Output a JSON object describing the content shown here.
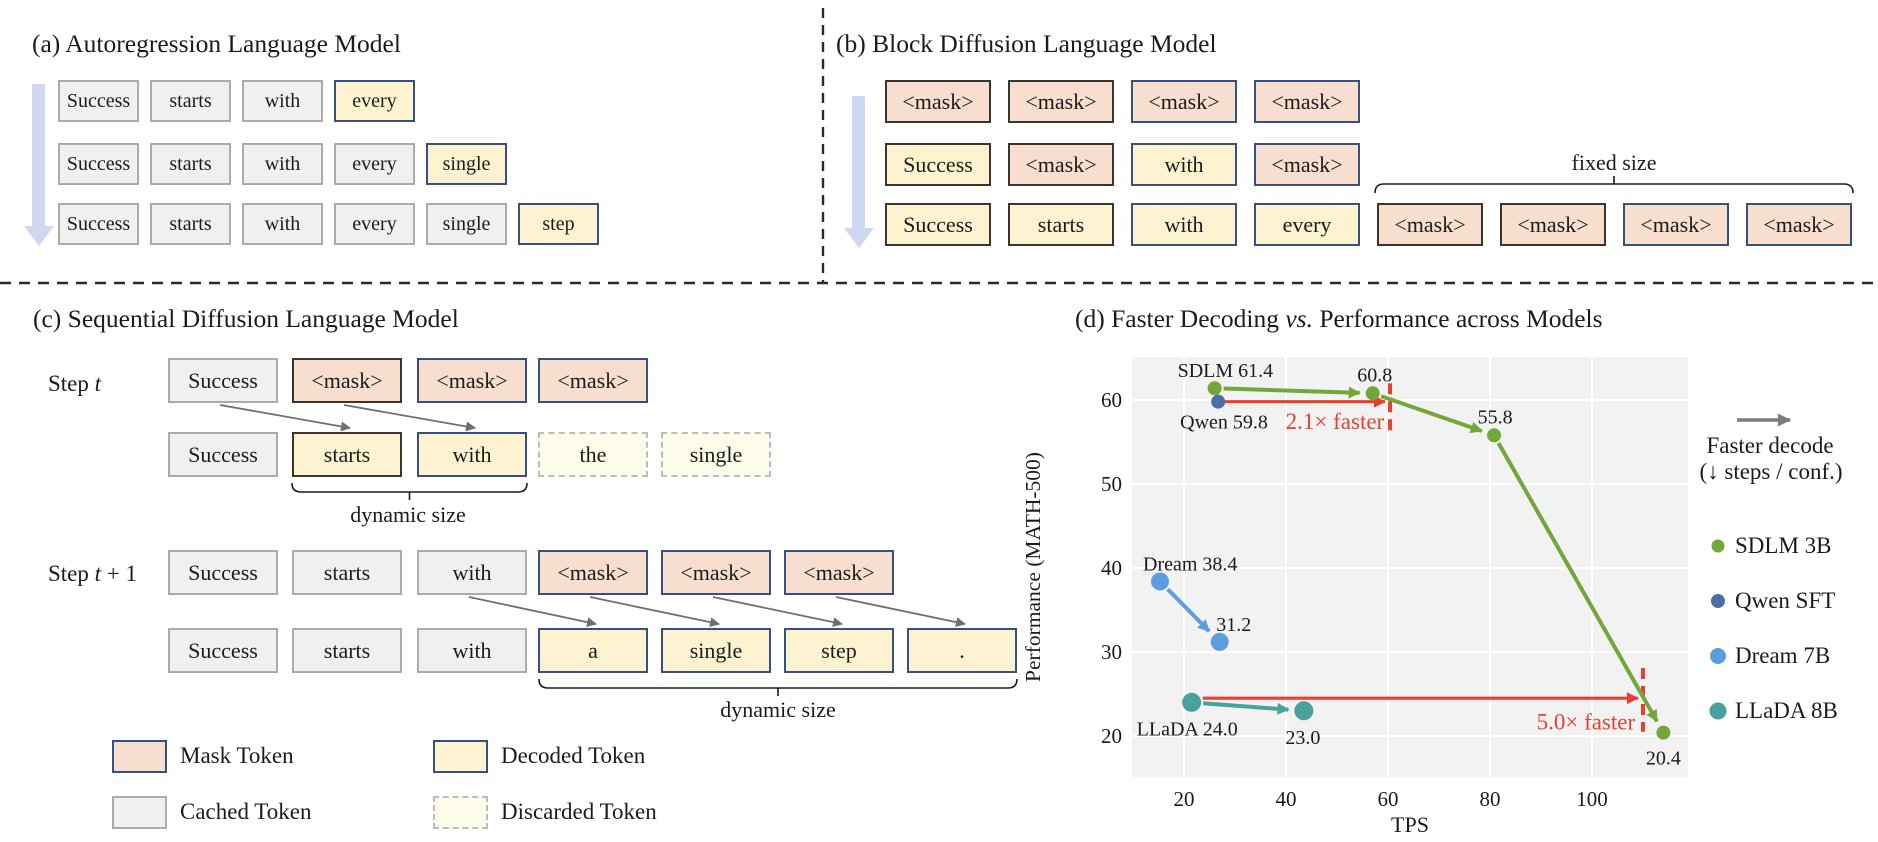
{
  "panel_a": {
    "title": "(a) Autoregression Language Model",
    "rows": [
      [
        {
          "t": "Success",
          "k": "cached"
        },
        {
          "t": "starts",
          "k": "cached"
        },
        {
          "t": "with",
          "k": "cached"
        },
        {
          "t": "every",
          "k": "dec"
        }
      ],
      [
        {
          "t": "Success",
          "k": "cached"
        },
        {
          "t": "starts",
          "k": "cached"
        },
        {
          "t": "with",
          "k": "cached"
        },
        {
          "t": "every",
          "k": "cached"
        },
        {
          "t": "single",
          "k": "dec"
        }
      ],
      [
        {
          "t": "Success",
          "k": "cached"
        },
        {
          "t": "starts",
          "k": "cached"
        },
        {
          "t": "with",
          "k": "cached"
        },
        {
          "t": "every",
          "k": "cached"
        },
        {
          "t": "single",
          "k": "cached"
        },
        {
          "t": "step",
          "k": "dec"
        }
      ]
    ]
  },
  "panel_b": {
    "title": "(b) Block Diffusion Language Model",
    "fixed_size_label": "fixed size",
    "rows": [
      [
        {
          "t": "<mask>",
          "k": "maskd"
        },
        {
          "t": "<mask>",
          "k": "maskd"
        },
        {
          "t": "<mask>",
          "k": "mask"
        },
        {
          "t": "<mask>",
          "k": "mask"
        }
      ],
      [
        {
          "t": "Success",
          "k": "decd"
        },
        {
          "t": "<mask>",
          "k": "maskd"
        },
        {
          "t": "with",
          "k": "dec"
        },
        {
          "t": "<mask>",
          "k": "mask"
        }
      ],
      [
        {
          "t": "Success",
          "k": "decd"
        },
        {
          "t": "starts",
          "k": "decd"
        },
        {
          "t": "with",
          "k": "dec"
        },
        {
          "t": "every",
          "k": "dec"
        }
      ]
    ],
    "mask_row": [
      {
        "t": "<mask>",
        "k": "maskd"
      },
      {
        "t": "<mask>",
        "k": "maskd"
      },
      {
        "t": "<mask>",
        "k": "mask"
      },
      {
        "t": "<mask>",
        "k": "mask"
      }
    ]
  },
  "panel_c": {
    "title": "(c) Sequential Diffusion Language Model",
    "step_t": {
      "prefix": "Step ",
      "var": "t",
      "suffix": ""
    },
    "step_t1": {
      "prefix": "Step ",
      "var": "t",
      "suffix": " + 1"
    },
    "dynamic_size_label": "dynamic size",
    "step_t_rows": [
      [
        {
          "t": "Success",
          "k": "cached"
        },
        {
          "t": "<mask>",
          "k": "maskd"
        },
        {
          "t": "<mask>",
          "k": "mask"
        },
        {
          "t": "<mask>",
          "k": "mask"
        }
      ],
      [
        {
          "t": "Success",
          "k": "cached"
        },
        {
          "t": "starts",
          "k": "decd"
        },
        {
          "t": "with",
          "k": "dec"
        },
        {
          "t": "the",
          "k": "disc"
        },
        {
          "t": "single",
          "k": "disc"
        }
      ]
    ],
    "step_t1_rows": [
      [
        {
          "t": "Success",
          "k": "cached"
        },
        {
          "t": "starts",
          "k": "cached"
        },
        {
          "t": "with",
          "k": "cached"
        },
        {
          "t": "<mask>",
          "k": "mask"
        },
        {
          "t": "<mask>",
          "k": "mask"
        },
        {
          "t": "<mask>",
          "k": "mask"
        }
      ],
      [
        {
          "t": "Success",
          "k": "cached"
        },
        {
          "t": "starts",
          "k": "cached"
        },
        {
          "t": "with",
          "k": "cached"
        },
        {
          "t": "a",
          "k": "dec"
        },
        {
          "t": "single",
          "k": "dec"
        },
        {
          "t": "step",
          "k": "dec"
        },
        {
          "t": ".",
          "k": "dec"
        }
      ]
    ],
    "legend": [
      {
        "label": "Mask Token",
        "kind": "mask"
      },
      {
        "label": "Cached Token",
        "kind": "cached"
      },
      {
        "label": "Decoded Token",
        "kind": "dec"
      },
      {
        "label": "Discarded Token",
        "kind": "disc"
      }
    ]
  },
  "panel_d": {
    "title_prefix": "(d) Faster Decoding ",
    "title_vs": "vs.",
    "title_suffix": " Performance across Models"
  },
  "chart_data": {
    "type": "scatter",
    "xlabel": "TPS",
    "ylabel": "Performance (MATH-500)",
    "x_ticks": [
      20,
      40,
      60,
      80,
      100
    ],
    "y_ticks": [
      20,
      30,
      40,
      50,
      60
    ],
    "xlim": [
      9.8,
      118.8
    ],
    "ylim": [
      15.1,
      65.2
    ],
    "grid": true,
    "series": [
      {
        "name": "SDLM 3B",
        "color": "#74a73a",
        "r": 7,
        "arrows": true,
        "points": [
          {
            "x": 26,
            "y": 61.4,
            "label": "SDLM 61.4",
            "la": "start",
            "ldx": -37,
            "ldy": -11
          },
          {
            "x": 57,
            "y": 60.8,
            "label": "60.8",
            "la": "middle",
            "ldx": 2,
            "ldy": -12
          },
          {
            "x": 80.8,
            "y": 55.8,
            "label": "55.8",
            "la": "middle",
            "ldx": 1,
            "ldy": -12
          },
          {
            "x": 114,
            "y": 20.4,
            "label": "20.4",
            "la": "middle",
            "ldx": 0,
            "ldy": 32
          }
        ]
      },
      {
        "name": "Qwen SFT",
        "color": "#4a6fa8",
        "r": 7,
        "arrows": false,
        "points": [
          {
            "x": 26.7,
            "y": 59.8,
            "label": "Qwen 59.8",
            "la": "start",
            "ldx": -38,
            "ldy": 27
          }
        ]
      },
      {
        "name": "Dream 7B",
        "color": "#5a9ee0",
        "r": 9,
        "arrows": true,
        "points": [
          {
            "x": 15.3,
            "y": 38.4,
            "label": "Dream 38.4",
            "la": "start",
            "ldx": -17,
            "ldy": -11
          },
          {
            "x": 27,
            "y": 31.2,
            "label": "31.2",
            "la": "middle",
            "ldx": 14,
            "ldy": -11
          }
        ]
      },
      {
        "name": "LLaDA 8B",
        "color": "#47a29b",
        "r": 9.5,
        "arrows": true,
        "points": [
          {
            "x": 21.5,
            "y": 24.0,
            "label": "LLaDA 24.0",
            "la": "start",
            "ldx": -55,
            "ldy": 33
          },
          {
            "x": 43.5,
            "y": 23.0,
            "label": "23.0",
            "la": "middle",
            "ldx": -1,
            "ldy": 33
          }
        ]
      }
    ],
    "annotations": [
      {
        "type": "harrow",
        "x1": 28,
        "x2": 59.4,
        "y": 59.8
      },
      {
        "type": "vdash",
        "x": 60.4,
        "ytop": 62.0,
        "ybot": 56.2
      },
      {
        "type": "text",
        "x": 49.6,
        "y": 56.55,
        "text": "2.1× faster"
      },
      {
        "type": "harrow",
        "x1": 23.7,
        "x2": 109,
        "y": 24.5
      },
      {
        "type": "vdash",
        "x": 110,
        "ytop": 28.1,
        "ybot": 20.5
      },
      {
        "type": "text",
        "x": 98.8,
        "y": 20.8,
        "text": "5.0× faster"
      }
    ],
    "annotation_color": "#e8402f",
    "legend": {
      "arrow_label_line1": "Faster decode",
      "arrow_label_line2": "(↓ steps / conf.)",
      "arrow_color": "#7d7d7d"
    }
  }
}
